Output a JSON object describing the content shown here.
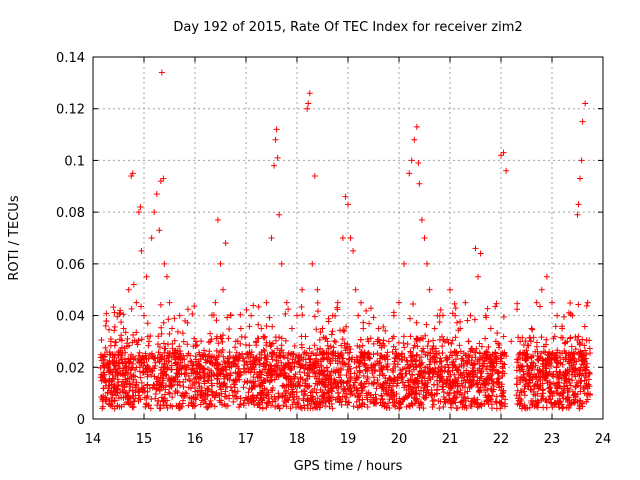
{
  "chart_data": {
    "type": "scatter",
    "title": "Day 192 of 2015, Rate Of TEC Index for receiver zim2",
    "xlabel": "GPS time / hours",
    "ylabel": "ROTI / TECUs",
    "xlim": [
      14,
      24
    ],
    "ylim": [
      0,
      0.14
    ],
    "x_ticks": [
      "14",
      "15",
      "16",
      "17",
      "18",
      "19",
      "20",
      "21",
      "22",
      "23",
      "24"
    ],
    "y_ticks": [
      "0",
      "0.02",
      "0.04",
      "0.06",
      "0.08",
      "0.1",
      "0.12",
      "0.14"
    ],
    "grid": true,
    "marker": "+",
    "marker_color": "#ff0000",
    "series": [
      {
        "x": [
          14.2,
          14.25,
          14.3,
          14.35,
          14.4,
          14.5,
          14.6,
          14.7,
          14.75,
          14.78,
          14.8,
          14.85,
          14.9,
          14.93,
          14.95,
          15.0,
          15.05,
          15.1,
          15.15,
          15.2,
          15.25,
          15.3,
          15.33,
          15.35,
          15.38,
          15.4,
          15.45,
          15.5,
          15.55,
          15.6,
          15.7,
          15.8,
          15.9,
          16.0,
          16.1,
          16.2,
          16.3,
          16.4,
          16.45,
          16.5,
          16.55,
          16.6,
          16.7,
          16.8,
          16.9,
          17.0,
          17.1,
          17.2,
          17.3,
          17.4,
          17.5,
          17.55,
          17.58,
          17.6,
          17.62,
          17.65,
          17.7,
          17.8,
          17.9,
          18.0,
          18.1,
          18.2,
          18.22,
          18.25,
          18.3,
          18.35,
          18.4,
          18.5,
          18.6,
          18.7,
          18.8,
          18.9,
          18.95,
          19.0,
          19.05,
          19.1,
          19.15,
          19.2,
          19.3,
          19.4,
          19.5,
          19.6,
          19.7,
          19.8,
          19.9,
          20.0,
          20.1,
          20.2,
          20.25,
          20.3,
          20.35,
          20.38,
          20.4,
          20.45,
          20.5,
          20.55,
          20.6,
          20.7,
          20.8,
          20.9,
          21.0,
          21.1,
          21.2,
          21.3,
          21.4,
          21.5,
          21.55,
          21.6,
          21.7,
          21.8,
          21.9,
          22.0,
          22.05,
          22.1,
          22.2,
          22.4,
          22.5,
          22.6,
          22.7,
          22.8,
          22.9,
          23.0,
          23.1,
          23.2,
          23.3,
          23.4,
          23.5,
          23.52,
          23.55,
          23.58,
          23.6,
          23.65,
          23.7
        ],
        "y": [
          0.015,
          0.036,
          0.02,
          0.03,
          0.012,
          0.025,
          0.035,
          0.05,
          0.094,
          0.095,
          0.052,
          0.045,
          0.08,
          0.082,
          0.065,
          0.04,
          0.055,
          0.03,
          0.07,
          0.08,
          0.087,
          0.073,
          0.092,
          0.134,
          0.093,
          0.06,
          0.055,
          0.045,
          0.035,
          0.025,
          0.04,
          0.02,
          0.015,
          0.012,
          0.018,
          0.025,
          0.03,
          0.045,
          0.077,
          0.06,
          0.05,
          0.068,
          0.04,
          0.03,
          0.035,
          0.025,
          0.04,
          0.03,
          0.035,
          0.045,
          0.07,
          0.098,
          0.108,
          0.112,
          0.101,
          0.079,
          0.06,
          0.045,
          0.035,
          0.04,
          0.05,
          0.12,
          0.122,
          0.126,
          0.06,
          0.094,
          0.05,
          0.035,
          0.03,
          0.04,
          0.045,
          0.07,
          0.086,
          0.083,
          0.07,
          0.065,
          0.05,
          0.04,
          0.035,
          0.03,
          0.025,
          0.035,
          0.02,
          0.03,
          0.04,
          0.045,
          0.06,
          0.095,
          0.1,
          0.108,
          0.113,
          0.099,
          0.091,
          0.077,
          0.07,
          0.06,
          0.05,
          0.035,
          0.04,
          0.03,
          0.05,
          0.04,
          0.035,
          0.045,
          0.04,
          0.066,
          0.055,
          0.064,
          0.04,
          0.035,
          0.03,
          0.102,
          0.103,
          0.096,
          0.03,
          0.02,
          0.025,
          0.035,
          0.045,
          0.05,
          0.055,
          0.045,
          0.04,
          0.035,
          0.03,
          0.04,
          0.079,
          0.083,
          0.093,
          0.1,
          0.115,
          0.122,
          0.045
        ]
      }
    ]
  }
}
